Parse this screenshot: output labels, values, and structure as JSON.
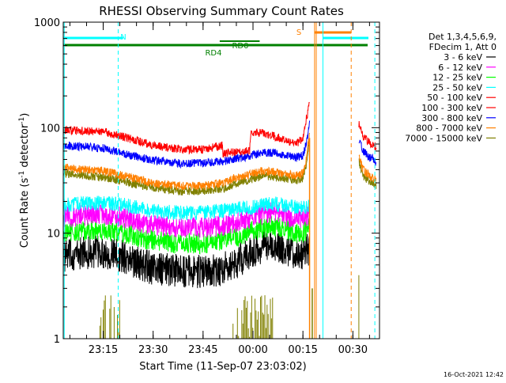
{
  "chart_data": {
    "type": "line",
    "title": "RHESSI Observing Summary Count Rates",
    "xlabel": "Start Time (11-Sep-07 23:03:02)",
    "ylabel_main": "Count Rate (s",
    "ylabel_sup1": "-1",
    "ylabel_mid": " detector",
    "ylabel_sup2": "-1",
    "ylabel_end": ")",
    "y_scale": "log",
    "ylim": [
      1,
      1000
    ],
    "xlim_minutes_after_start": [
      0,
      95
    ],
    "y_ticks": [
      {
        "value": 1,
        "label": "1"
      },
      {
        "value": 10,
        "label": "10"
      },
      {
        "value": 100,
        "label": "100"
      },
      {
        "value": 1000,
        "label": "1000"
      }
    ],
    "x_ticks": [
      {
        "minute": 12,
        "label": "23:15"
      },
      {
        "minute": 27,
        "label": "23:30"
      },
      {
        "minute": 42,
        "label": "23:45"
      },
      {
        "minute": 57,
        "label": "00:00"
      },
      {
        "minute": 72,
        "label": "00:15"
      },
      {
        "minute": 87,
        "label": "00:30"
      }
    ],
    "legend_header": [
      "Det 1,3,4,5,6,9,",
      "FDecim 1, Att 0"
    ],
    "legend_position": "right",
    "series": [
      {
        "name": "3 - 6 keV",
        "color": "#000000",
        "x": [
          0,
          6,
          12,
          18,
          27,
          35,
          42,
          48,
          51,
          56,
          60,
          63,
          70,
          72,
          74
        ],
        "values": [
          6,
          6.5,
          6.6,
          6.0,
          4.6,
          4.4,
          4.3,
          4.6,
          5.0,
          6.4,
          7.6,
          7.8,
          6.5,
          6.4,
          7.0
        ]
      },
      {
        "name": "6 - 12 keV",
        "color": "#ff00ff",
        "x": [
          0,
          6,
          12,
          18,
          27,
          35,
          42,
          48,
          51,
          56,
          60,
          63,
          70,
          72,
          74
        ],
        "values": [
          14,
          14.8,
          15.2,
          14,
          12,
          11.4,
          11.3,
          11.8,
          12.6,
          13.8,
          15.2,
          15.8,
          13.6,
          13.5,
          14.5
        ]
      },
      {
        "name": "12 - 25 keV",
        "color": "#00ff00",
        "x": [
          0,
          6,
          12,
          18,
          27,
          35,
          42,
          48,
          51,
          56,
          60,
          63,
          70,
          72,
          74
        ],
        "values": [
          10,
          10.5,
          10.8,
          10.1,
          8.5,
          8.0,
          8.0,
          8.5,
          9.0,
          10.2,
          11.2,
          11.6,
          10.2,
          10.0,
          11.5
        ]
      },
      {
        "name": "25 - 50 keV",
        "color": "#00ffff",
        "x": [
          0,
          6,
          12,
          18,
          27,
          35,
          42,
          48,
          51,
          56,
          60,
          63,
          70,
          72,
          74
        ],
        "values": [
          18.5,
          19,
          19.5,
          18.5,
          16.2,
          15.6,
          15.6,
          16.4,
          16.8,
          17.5,
          18.6,
          19.2,
          17.5,
          17.2,
          18.5
        ]
      },
      {
        "name": "50 - 100 keV",
        "color": "#ff0000",
        "x": [
          0,
          6,
          12,
          18,
          27,
          35,
          42,
          47.8,
          48,
          51,
          54,
          56,
          56.3,
          60,
          63,
          67,
          70,
          72,
          73,
          74
        ],
        "values": [
          96,
          93,
          92,
          82,
          68,
          62,
          62,
          68,
          57,
          59,
          60,
          60,
          91,
          89,
          84,
          76,
          70,
          80,
          120,
          170
        ]
      },
      {
        "name": "100 - 300 keV",
        "color": "#ff0000",
        "x": [
          88.8,
          90,
          92,
          94
        ],
        "values": [
          110,
          82,
          72,
          66
        ]
      },
      {
        "name": "300 - 800 keV",
        "color": "#0000ff",
        "x": [
          0,
          6,
          12,
          18,
          27,
          35,
          42,
          48,
          51,
          56,
          60,
          63,
          70,
          72,
          73,
          74,
          88.8,
          90,
          92,
          94
        ],
        "values": [
          68,
          66,
          64,
          57,
          49,
          46,
          46,
          48,
          50,
          54,
          58,
          58,
          52,
          55,
          70,
          110,
          78,
          60,
          53,
          48
        ]
      },
      {
        "name": "800 - 7000 keV",
        "color": "#ff8000",
        "x": [
          0,
          6,
          12,
          18,
          27,
          35,
          42,
          48,
          51,
          56,
          60,
          63,
          70,
          72,
          73,
          74,
          88.8,
          90,
          92,
          94
        ],
        "values": [
          42,
          40,
          39,
          35,
          30,
          28,
          28,
          30,
          33,
          36,
          39,
          38,
          35,
          37,
          50,
          90,
          55,
          40,
          35,
          32
        ]
      },
      {
        "name": "7000 - 15000 keV",
        "color": "#808000",
        "x": [
          0,
          6,
          12,
          18,
          27,
          35,
          42,
          48,
          51,
          56,
          60,
          63,
          70,
          72,
          73,
          74,
          88.8,
          90,
          92,
          94
        ],
        "values": [
          37,
          35,
          34,
          31,
          27,
          25,
          25,
          26.5,
          29,
          32,
          35,
          34,
          32,
          33,
          45,
          80,
          48,
          35,
          31,
          28
        ]
      }
    ],
    "annotations": [
      {
        "label": "N"
      },
      {
        "label": "RD0"
      },
      {
        "label": "RD4"
      },
      {
        "label": "S"
      }
    ]
  },
  "footer": {
    "timestamp": "16-Oct-2021 12:42"
  }
}
